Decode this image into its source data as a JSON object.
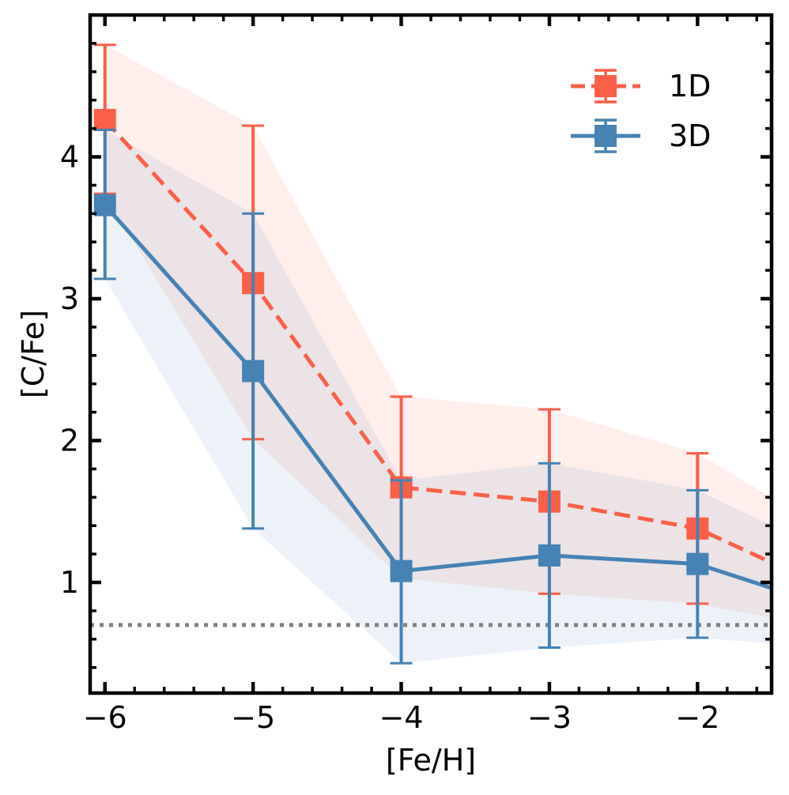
{
  "chart_data": {
    "type": "line",
    "title": "",
    "xlabel": "[Fe/H]",
    "ylabel": "[C/Fe]",
    "xlim": [
      -6.1,
      -1.5
    ],
    "ylim": [
      0.22,
      5.0
    ],
    "xticks": [
      -6,
      -5,
      -4,
      -3,
      -2
    ],
    "xtick_labels": [
      "−6",
      "−5",
      "−4",
      "−3",
      "−2"
    ],
    "yticks": [
      1,
      2,
      3,
      4
    ],
    "ytick_labels": [
      "1",
      "2",
      "3",
      "4"
    ],
    "x_minor_step": 0.2,
    "y_minor_step": 0.2,
    "ticks_direction": "in",
    "ticks_on_all_sides": true,
    "grid": false,
    "legend_position": "top-right",
    "reference_line": {
      "y": 0.7,
      "style": "dotted",
      "color": "#808080"
    },
    "series": [
      {
        "name": "1D",
        "color": "#fa5f48",
        "linestyle": "dashed",
        "marker": "square",
        "x": [
          -6,
          -5,
          -4,
          -3,
          -2
        ],
        "y": [
          4.26,
          3.11,
          1.67,
          1.57,
          1.38
        ],
        "yerr_low": [
          3.74,
          2.01,
          1.03,
          0.92,
          0.85
        ],
        "yerr_high": [
          4.79,
          4.22,
          2.31,
          2.22,
          1.91
        ],
        "tail": {
          "x": -1.5,
          "y": 1.14
        },
        "band": {
          "x": [
            -6,
            -5,
            -4,
            -3,
            -2,
            -1.5
          ],
          "lower": [
            3.74,
            2.01,
            1.03,
            0.92,
            0.85,
            0.75
          ],
          "upper": [
            4.79,
            4.22,
            2.31,
            2.22,
            1.91,
            1.6
          ]
        }
      },
      {
        "name": "3D",
        "color": "#4682b4",
        "linestyle": "solid",
        "marker": "square",
        "x": [
          -6,
          -5,
          -4,
          -3,
          -2
        ],
        "y": [
          3.66,
          2.49,
          1.08,
          1.19,
          1.13
        ],
        "yerr_low": [
          3.14,
          1.38,
          0.43,
          0.54,
          0.61
        ],
        "yerr_high": [
          4.19,
          3.6,
          1.72,
          1.84,
          1.65
        ],
        "tail": {
          "x": -1.5,
          "y": 0.96
        },
        "band": {
          "x": [
            -6,
            -5,
            -4,
            -3,
            -2,
            -1.5
          ],
          "lower": [
            3.14,
            1.38,
            0.43,
            0.54,
            0.61,
            0.57
          ],
          "upper": [
            4.19,
            3.6,
            1.72,
            1.84,
            1.65,
            1.4
          ]
        }
      }
    ]
  }
}
